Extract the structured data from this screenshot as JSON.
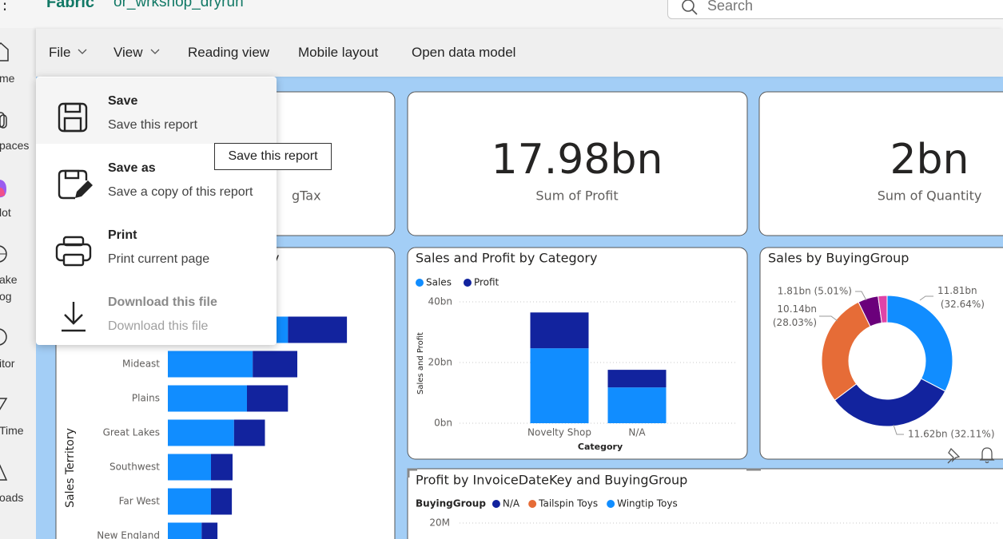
{
  "top_bar": {
    "brand": "Fabric",
    "workspace": "or_wrkshop_dryrun",
    "search_placeholder": "Search"
  },
  "left_nav": {
    "items": [
      "me",
      "paces",
      "lot",
      "ake",
      "og",
      "itor",
      "Time",
      "oads"
    ]
  },
  "menu_bar": {
    "items": [
      "File",
      "View",
      "Reading view",
      "Mobile layout",
      "Open data model"
    ]
  },
  "file_menu": {
    "items": [
      {
        "title": "Save",
        "description": "Save this report"
      },
      {
        "title": "Save as",
        "description": "Save a copy of this report"
      },
      {
        "title": "Print",
        "description": "Print current page"
      },
      {
        "title": "Download this file",
        "description": "Download this file"
      }
    ]
  },
  "tooltip": "Save this report",
  "cards": [
    {
      "label": "gTax"
    },
    {
      "value": "17.98bn",
      "label": "Sum of Profit"
    },
    {
      "value": "2bn",
      "label": "Sum of Quantity"
    }
  ],
  "chart_data": [
    {
      "type": "hbar",
      "title": "y",
      "y_label": "Sales Territory",
      "categories": [
        null,
        "Mideast",
        "Plains",
        "Great Lakes",
        "Southwest",
        "Far West",
        "New England"
      ],
      "series": [
        {
          "name": "Sales",
          "color": "#118dff",
          "values": [
            16.7,
            11.8,
            11.0,
            9.2,
            6.0,
            6.0,
            4.7
          ]
        },
        {
          "name": "Profit",
          "color": "#12239e",
          "values": [
            8.2,
            6.2,
            5.7,
            4.3,
            3.0,
            2.9,
            2.2
          ]
        }
      ],
      "xlim": [
        0,
        30
      ]
    },
    {
      "type": "bar",
      "title": "Sales and Profit by Category",
      "x_label": "Category",
      "y_label": "Sales and Profit",
      "categories": [
        "Novelty Shop",
        "N/A"
      ],
      "series": [
        {
          "name": "Sales",
          "color": "#118dff",
          "values": [
            24.7,
            11.8
          ]
        },
        {
          "name": "Profit",
          "color": "#12239e",
          "values": [
            11.8,
            5.8
          ]
        }
      ],
      "ylim": [
        0,
        40
      ],
      "yticks": [
        {
          "value": 0,
          "label": "0bn"
        },
        {
          "value": 20,
          "label": "20bn"
        },
        {
          "value": 40,
          "label": "40bn"
        }
      ],
      "grid": true
    },
    {
      "type": "donut",
      "title": "Sales by BuyingGroup",
      "values": [
        11.81,
        11.62,
        10.14,
        1.81,
        0.8
      ],
      "value_labels": [
        "11.81bn (32.64%)",
        "11.62bn (32.11%)",
        "10.14bn (28.03%)",
        "1.81bn (5.01%)",
        null
      ],
      "colors": [
        "#118dff",
        "#12239e",
        "#e66c37",
        "#6b007b",
        "#e044a7"
      ]
    },
    {
      "type": "line",
      "title": "Profit by InvoiceDateKey and BuyingGroup",
      "legend_title": "BuyingGroup",
      "series": [
        {
          "name": "N/A",
          "color": "#12239e"
        },
        {
          "name": "Tailspin Toys",
          "color": "#e66c37"
        },
        {
          "name": "Wingtip Toys",
          "color": "#118dff"
        }
      ],
      "yticks": [
        {
          "value": 20000000,
          "label": "20M"
        }
      ],
      "grid": true
    }
  ]
}
